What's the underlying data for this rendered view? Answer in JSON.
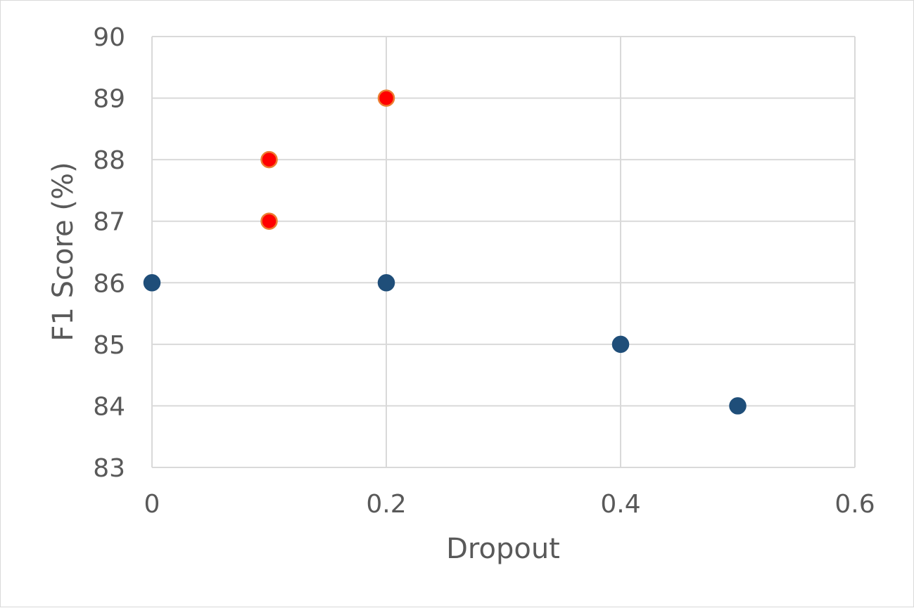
{
  "chart_data": {
    "type": "scatter",
    "title": "",
    "xlabel": "Dropout",
    "ylabel": "F1 Score (%)",
    "xlim": [
      0,
      0.6
    ],
    "ylim": [
      83,
      90
    ],
    "x_ticks": [
      "0",
      "0.2",
      "0.4",
      "0.6"
    ],
    "y_ticks": [
      "90",
      "89",
      "88",
      "87",
      "86",
      "85",
      "84",
      "83"
    ],
    "grid": true,
    "legend": "none",
    "series": [
      {
        "color": "#1f4e79",
        "stroke": "#1f4e79",
        "points": [
          {
            "x": 0,
            "y": 86
          },
          {
            "x": 0.2,
            "y": 86
          },
          {
            "x": 0.4,
            "y": 85
          },
          {
            "x": 0.5,
            "y": 84
          }
        ]
      },
      {
        "color": "#ff0000",
        "stroke": "#ed7d31",
        "points": [
          {
            "x": 0.1,
            "y": 88
          },
          {
            "x": 0.1,
            "y": 87
          },
          {
            "x": 0.2,
            "y": 89
          }
        ]
      }
    ]
  }
}
